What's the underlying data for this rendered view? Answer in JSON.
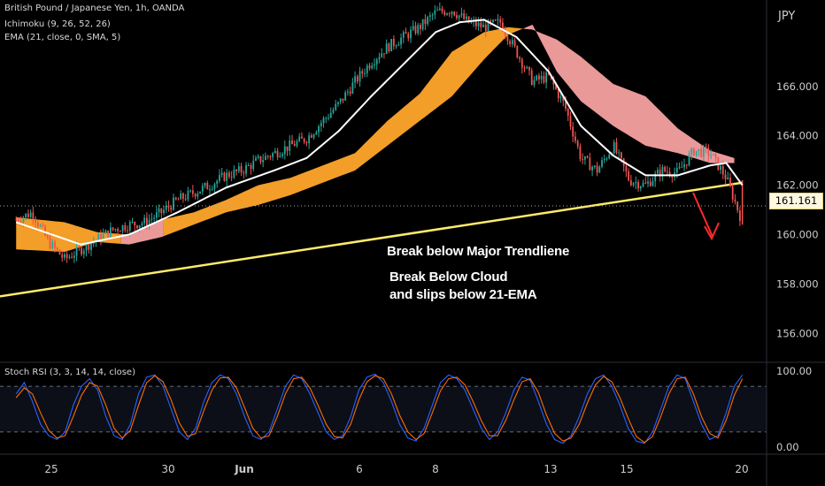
{
  "legend": {
    "symbol": "British Pound / Japanese Yen, 1h, OANDA",
    "ichimoku": "Ichimoku (9, 26, 52, 26)",
    "ema": "EMA (21, close, 0, SMA, 5)",
    "stoch": "Stoch RSI (3, 3, 14, 14, close)"
  },
  "annotations": {
    "line1": "Break below Major Trendliene",
    "line2": "Break Below Cloud",
    "line3": "and slips below 21-EMA"
  },
  "currency_label": "JPY",
  "last_price_label": "161.161",
  "colors": {
    "background": "#000000",
    "bull_candle": "#26a69a",
    "bear_candle": "#ef5350",
    "cloud_bull": "#ffa62b",
    "cloud_bear": "#f7a1a1",
    "ema": "#ffffff",
    "trendline": "#ffeb6a",
    "stoch_k": "#2962ff",
    "stoch_d": "#ff6d00",
    "arrow": "#ff2a2a",
    "axis_text": "#cccccc"
  },
  "chart_data": [
    {
      "type": "candlestick",
      "title": "British Pound / Japanese Yen, 1h, OANDA",
      "ylabel": "JPY",
      "ylim": [
        154.9,
        169.5
      ],
      "y_ticks": [
        "156.000",
        "158.000",
        "160.000",
        "162.000",
        "164.000",
        "166.000"
      ],
      "x_ticks": [
        "25",
        "30",
        "Jun",
        "6",
        "8",
        "13",
        "15",
        "20"
      ],
      "last_price": 161.161,
      "price_path": [
        {
          "d": 0,
          "p": 160.6
        },
        {
          "d": 2,
          "p": 160.9
        },
        {
          "d": 4,
          "p": 159.7
        },
        {
          "d": 6,
          "p": 159.0
        },
        {
          "d": 8,
          "p": 159.4
        },
        {
          "d": 10,
          "p": 159.8
        },
        {
          "d": 12,
          "p": 160.2
        },
        {
          "d": 14,
          "p": 160.4
        },
        {
          "d": 16,
          "p": 160.5
        },
        {
          "d": 18,
          "p": 160.9
        },
        {
          "d": 20,
          "p": 161.4
        },
        {
          "d": 22,
          "p": 161.7
        },
        {
          "d": 24,
          "p": 162.0
        },
        {
          "d": 26,
          "p": 162.4
        },
        {
          "d": 28,
          "p": 162.6
        },
        {
          "d": 30,
          "p": 163.0
        },
        {
          "d": 32,
          "p": 163.3
        },
        {
          "d": 34,
          "p": 163.6
        },
        {
          "d": 36,
          "p": 163.9
        },
        {
          "d": 38,
          "p": 164.6
        },
        {
          "d": 40,
          "p": 165.3
        },
        {
          "d": 42,
          "p": 166.2
        },
        {
          "d": 44,
          "p": 167.0
        },
        {
          "d": 46,
          "p": 167.6
        },
        {
          "d": 48,
          "p": 168.0
        },
        {
          "d": 50,
          "p": 168.4
        },
        {
          "d": 52,
          "p": 169.0
        },
        {
          "d": 54,
          "p": 169.1
        },
        {
          "d": 56,
          "p": 168.6
        },
        {
          "d": 58,
          "p": 168.4
        },
        {
          "d": 60,
          "p": 168.6
        },
        {
          "d": 62,
          "p": 167.4
        },
        {
          "d": 64,
          "p": 166.2
        },
        {
          "d": 66,
          "p": 166.4
        },
        {
          "d": 68,
          "p": 165.2
        },
        {
          "d": 70,
          "p": 163.1
        },
        {
          "d": 72,
          "p": 162.6
        },
        {
          "d": 74,
          "p": 163.6
        },
        {
          "d": 76,
          "p": 162.2
        },
        {
          "d": 78,
          "p": 162.0
        },
        {
          "d": 80,
          "p": 162.6
        },
        {
          "d": 82,
          "p": 162.5
        },
        {
          "d": 84,
          "p": 163.4
        },
        {
          "d": 86,
          "p": 163.3
        },
        {
          "d": 88,
          "p": 162.3
        },
        {
          "d": 90,
          "p": 160.5
        }
      ],
      "ema21": [
        {
          "d": 0,
          "p": 160.5
        },
        {
          "d": 8,
          "p": 159.6
        },
        {
          "d": 14,
          "p": 160.0
        },
        {
          "d": 20,
          "p": 160.9
        },
        {
          "d": 26,
          "p": 161.9
        },
        {
          "d": 32,
          "p": 162.6
        },
        {
          "d": 36,
          "p": 163.1
        },
        {
          "d": 40,
          "p": 164.2
        },
        {
          "d": 44,
          "p": 165.6
        },
        {
          "d": 48,
          "p": 166.9
        },
        {
          "d": 52,
          "p": 168.2
        },
        {
          "d": 55,
          "p": 168.6
        },
        {
          "d": 58,
          "p": 168.7
        },
        {
          "d": 62,
          "p": 168.0
        },
        {
          "d": 66,
          "p": 166.6
        },
        {
          "d": 70,
          "p": 164.4
        },
        {
          "d": 74,
          "p": 163.2
        },
        {
          "d": 78,
          "p": 162.4
        },
        {
          "d": 82,
          "p": 162.4
        },
        {
          "d": 86,
          "p": 162.8
        },
        {
          "d": 88,
          "p": 162.9
        },
        {
          "d": 90,
          "p": 162.0
        }
      ],
      "cloud": [
        {
          "d": 0,
          "a": 160.7,
          "b": 159.4
        },
        {
          "d": 6,
          "a": 160.5,
          "b": 159.3
        },
        {
          "d": 10,
          "a": 160.1,
          "b": 159.7
        },
        {
          "d": 14,
          "a": 160.0,
          "b": 159.6
        },
        {
          "d": 18,
          "a": 160.6,
          "b": 159.9
        },
        {
          "d": 22,
          "a": 160.9,
          "b": 160.4
        },
        {
          "d": 26,
          "a": 161.4,
          "b": 160.9
        },
        {
          "d": 30,
          "a": 162.0,
          "b": 161.2
        },
        {
          "d": 34,
          "a": 162.3,
          "b": 161.6
        },
        {
          "d": 38,
          "a": 162.8,
          "b": 162.1
        },
        {
          "d": 42,
          "a": 163.3,
          "b": 162.6
        },
        {
          "d": 46,
          "a": 164.6,
          "b": 163.6
        },
        {
          "d": 50,
          "a": 165.7,
          "b": 164.6
        },
        {
          "d": 54,
          "a": 167.4,
          "b": 165.6
        },
        {
          "d": 58,
          "a": 168.2,
          "b": 167.1
        },
        {
          "d": 61,
          "a": 168.4,
          "b": 168.1
        },
        {
          "d": 64,
          "a": 168.3,
          "b": 168.5
        },
        {
          "d": 67,
          "a": 167.9,
          "b": 166.6
        },
        {
          "d": 70,
          "a": 167.2,
          "b": 165.4
        },
        {
          "d": 74,
          "a": 166.1,
          "b": 164.4
        },
        {
          "d": 78,
          "a": 165.6,
          "b": 163.6
        },
        {
          "d": 82,
          "a": 164.3,
          "b": 163.3
        },
        {
          "d": 86,
          "a": 163.4,
          "b": 162.9
        },
        {
          "d": 89,
          "a": 163.1,
          "b": 162.9
        }
      ],
      "trendline": [
        {
          "d": -2,
          "p": 157.5
        },
        {
          "d": 90,
          "p": 162.1
        }
      ]
    },
    {
      "type": "line",
      "title": "Stoch RSI (3, 3, 14, 14, close)",
      "ylim": [
        0,
        100
      ],
      "y_ticks": [
        "100.00",
        "0.00"
      ],
      "bands": [
        80,
        20
      ],
      "series": [
        {
          "values": [
            70,
            85,
            60,
            30,
            15,
            10,
            20,
            55,
            80,
            90,
            75,
            40,
            15,
            10,
            30,
            70,
            92,
            95,
            80,
            50,
            20,
            10,
            25,
            60,
            85,
            95,
            90,
            70,
            40,
            15,
            10,
            20,
            50,
            80,
            95,
            90,
            70,
            45,
            20,
            10,
            15,
            40,
            75,
            92,
            96,
            85,
            60,
            30,
            12,
            8,
            25,
            55,
            85,
            95,
            90,
            75,
            50,
            25,
            10,
            20,
            45,
            75,
            92,
            88,
            60,
            30,
            10,
            5,
            15,
            40,
            70,
            90,
            95,
            80,
            55,
            25,
            8,
            5,
            20,
            50,
            80,
            95,
            90,
            60,
            30,
            10,
            15,
            45,
            80,
            95
          ]
        },
        {
          "values": [
            65,
            78,
            70,
            45,
            22,
            12,
            15,
            40,
            68,
            85,
            80,
            55,
            25,
            12,
            22,
            55,
            85,
            94,
            86,
            62,
            32,
            14,
            18,
            48,
            75,
            91,
            92,
            78,
            52,
            25,
            12,
            15,
            40,
            70,
            90,
            92,
            78,
            55,
            30,
            14,
            12,
            30,
            62,
            86,
            94,
            90,
            70,
            42,
            20,
            10,
            18,
            45,
            74,
            90,
            92,
            82,
            60,
            35,
            15,
            15,
            35,
            62,
            86,
            90,
            72,
            42,
            18,
            8,
            12,
            30,
            58,
            82,
            93,
            86,
            65,
            38,
            14,
            6,
            14,
            40,
            70,
            90,
            92,
            70,
            40,
            18,
            12,
            35,
            68,
            90
          ]
        }
      ]
    }
  ]
}
